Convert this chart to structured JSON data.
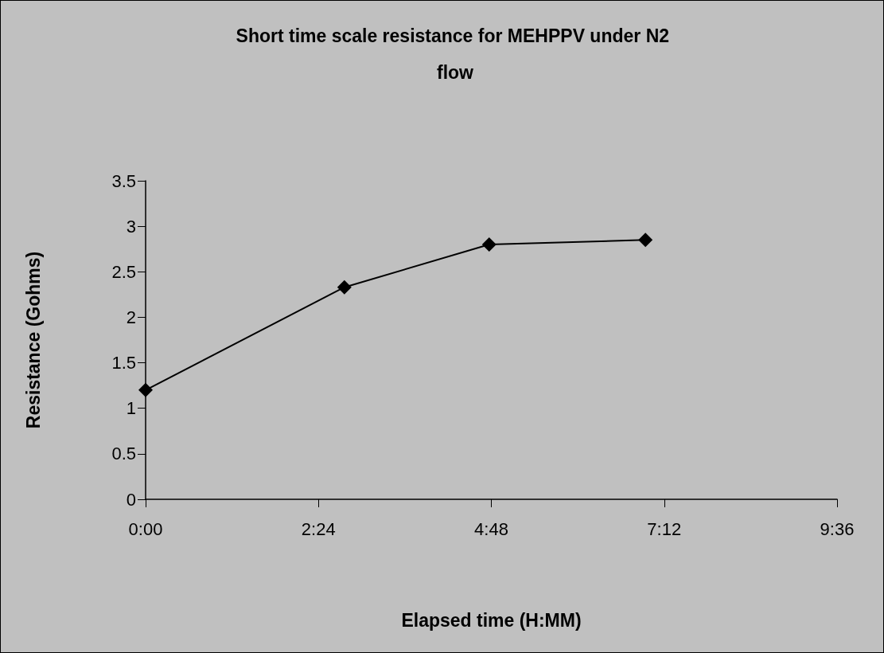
{
  "chart_data": {
    "type": "line",
    "title": "Short time scale resistance for MEHPPV under N2 flow",
    "xlabel": "Elapsed time (H:MM)",
    "ylabel": "Resistance (Gohms)",
    "x": [
      0,
      2.76,
      4.77,
      6.94
    ],
    "series": [
      {
        "color": "#000000",
        "values": [
          1.2,
          2.33,
          2.8,
          2.85
        ]
      }
    ],
    "xlim": [
      0,
      9.6
    ],
    "xticks": [
      {
        "value": 0,
        "label": "0:00"
      },
      {
        "value": 2.4,
        "label": "2:24"
      },
      {
        "value": 4.8,
        "label": "4:48"
      },
      {
        "value": 7.2,
        "label": "7:12"
      },
      {
        "value": 9.6,
        "label": "9:36"
      }
    ],
    "ylim": [
      0,
      3.5
    ],
    "yticks": [
      0,
      0.5,
      1,
      1.5,
      2,
      2.5,
      3,
      3.5
    ],
    "grid": false,
    "marker": "diamond",
    "line_style": "solid"
  }
}
